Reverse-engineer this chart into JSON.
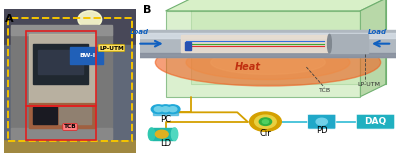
{
  "fig_width": 4.0,
  "fig_height": 1.56,
  "dpi": 100,
  "bg_color": "#ffffff",
  "panel_A_label": "A",
  "panel_B_label": "B",
  "label_LP_UTM": "LP-UTM",
  "label_BW_I": "BW-I",
  "label_TCB": "TCB",
  "label_PC": "PC",
  "label_LD": "LD",
  "label_Cir": "Cir",
  "label_PD": "PD",
  "label_DAQ": "DAQ",
  "label_Load_left": "Load",
  "label_Load_right": "Load",
  "label_Heat": "Heat",
  "label_LP_UTM_right": "LP-UTM",
  "label_TCB_right": "TCB",
  "box_yellow": "#f5c400",
  "box_red": "#e02020",
  "arrow_color": "#1060c0",
  "wire_color": "#d4a000",
  "daq_color": "#20b0c0",
  "pc_color": "#20a8d8",
  "ld_color": "#20b8a8",
  "pd_color": "#20a8c8",
  "cir_outer": "#d4a000",
  "cir_inner": "#e8d040",
  "font_size_label": 6,
  "font_size_panel": 8
}
